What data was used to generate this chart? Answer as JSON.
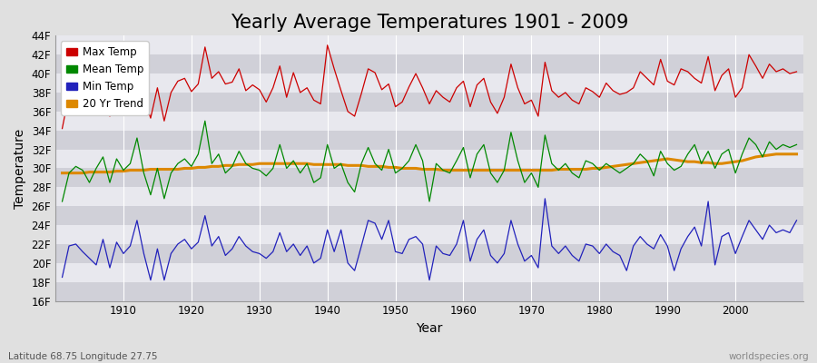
{
  "title": "Yearly Average Temperatures 1901 - 2009",
  "xlabel": "Year",
  "ylabel": "Temperature",
  "subtitle_left": "Latitude 68.75 Longitude 27.75",
  "subtitle_right": "worldspecies.org",
  "year_start": 1901,
  "year_end": 2009,
  "ylim": [
    16,
    44
  ],
  "yticks": [
    16,
    18,
    20,
    22,
    24,
    26,
    28,
    30,
    32,
    34,
    36,
    38,
    40,
    42,
    44
  ],
  "ytick_labels": [
    "16F",
    "18F",
    "20F",
    "22F",
    "24F",
    "26F",
    "28F",
    "30F",
    "32F",
    "34F",
    "36F",
    "38F",
    "40F",
    "42F",
    "44F"
  ],
  "xticks": [
    1910,
    1920,
    1930,
    1940,
    1950,
    1960,
    1970,
    1980,
    1990,
    2000
  ],
  "legend_entries": [
    "Max Temp",
    "Mean Temp",
    "Min Temp",
    "20 Yr Trend"
  ],
  "line_colors": [
    "#cc0000",
    "#008800",
    "#2222bb",
    "#dd8800"
  ],
  "bg_color": "#e0e0e0",
  "plot_bg_color": "#e8e8ee",
  "alt_band_color": "#d0d0d8",
  "grid_color": "#ffffff",
  "title_fontsize": 15,
  "axis_label_fontsize": 10,
  "tick_fontsize": 8.5,
  "legend_fontsize": 8.5,
  "max_temps": [
    34.2,
    37.8,
    38.4,
    37.2,
    36.5,
    38.9,
    38.2,
    35.5,
    38.1,
    36.8,
    38.3,
    41.2,
    37.6,
    35.3,
    38.5,
    35.0,
    38.0,
    39.2,
    39.5,
    38.1,
    38.9,
    42.8,
    39.5,
    40.2,
    38.9,
    39.1,
    40.5,
    38.2,
    38.8,
    38.3,
    37.0,
    38.5,
    40.8,
    37.5,
    40.1,
    38.0,
    38.5,
    37.2,
    36.8,
    43.0,
    40.5,
    38.2,
    36.0,
    35.5,
    37.9,
    40.5,
    40.1,
    38.3,
    38.9,
    36.5,
    37.0,
    38.6,
    40.0,
    38.5,
    36.8,
    38.2,
    37.5,
    37.0,
    38.5,
    39.2,
    36.5,
    38.8,
    39.5,
    37.0,
    35.8,
    37.5,
    41.0,
    38.5,
    36.8,
    37.2,
    35.5,
    41.2,
    38.2,
    37.5,
    38.0,
    37.2,
    36.8,
    38.5,
    38.1,
    37.5,
    39.0,
    38.2,
    37.8,
    38.0,
    38.5,
    40.2,
    39.5,
    38.8,
    41.5,
    39.2,
    38.8,
    40.5,
    40.2,
    39.5,
    39.0,
    41.8,
    38.2,
    39.8,
    40.5,
    37.5,
    38.5,
    42.0,
    40.8,
    39.5,
    41.0,
    40.2,
    40.5,
    40.0,
    40.2
  ],
  "mean_temps": [
    26.5,
    29.5,
    30.2,
    29.8,
    28.5,
    30.0,
    31.2,
    28.5,
    31.0,
    29.8,
    30.5,
    33.2,
    29.5,
    27.2,
    30.0,
    26.8,
    29.5,
    30.5,
    31.0,
    30.2,
    31.5,
    35.0,
    30.5,
    31.5,
    29.5,
    30.2,
    31.8,
    30.5,
    30.0,
    29.8,
    29.2,
    30.0,
    32.5,
    30.0,
    30.8,
    29.5,
    30.5,
    28.5,
    29.0,
    32.5,
    30.0,
    30.5,
    28.5,
    27.5,
    30.5,
    32.2,
    30.5,
    29.8,
    32.0,
    29.5,
    30.0,
    30.8,
    32.5,
    30.8,
    26.5,
    30.5,
    29.8,
    29.5,
    30.8,
    32.2,
    29.0,
    31.5,
    32.5,
    29.5,
    28.5,
    29.8,
    33.8,
    30.8,
    28.5,
    29.5,
    28.0,
    33.5,
    30.5,
    29.8,
    30.5,
    29.5,
    29.0,
    30.8,
    30.5,
    29.8,
    30.5,
    30.0,
    29.5,
    30.0,
    30.5,
    31.5,
    30.8,
    29.2,
    31.8,
    30.5,
    29.8,
    30.2,
    31.5,
    32.5,
    30.5,
    31.8,
    30.0,
    31.5,
    32.0,
    29.5,
    31.5,
    33.2,
    32.5,
    31.2,
    32.8,
    32.0,
    32.5,
    32.2,
    32.5
  ],
  "min_temps": [
    18.5,
    21.8,
    22.0,
    21.2,
    20.5,
    19.8,
    22.5,
    19.5,
    22.2,
    21.0,
    21.8,
    24.5,
    21.0,
    18.2,
    21.5,
    18.2,
    21.0,
    22.0,
    22.5,
    21.5,
    22.2,
    25.0,
    21.8,
    22.8,
    20.8,
    21.5,
    22.8,
    21.8,
    21.2,
    21.0,
    20.5,
    21.2,
    23.2,
    21.2,
    22.0,
    20.8,
    21.8,
    20.0,
    20.5,
    23.5,
    21.2,
    23.5,
    20.0,
    19.2,
    21.8,
    24.5,
    24.2,
    22.5,
    24.5,
    21.2,
    21.0,
    22.5,
    22.8,
    22.0,
    18.2,
    21.8,
    21.0,
    20.8,
    22.0,
    24.5,
    20.2,
    22.5,
    23.5,
    20.8,
    20.0,
    21.0,
    24.5,
    22.0,
    20.2,
    20.8,
    19.5,
    26.8,
    21.8,
    21.0,
    21.8,
    20.8,
    20.2,
    22.0,
    21.8,
    21.0,
    22.0,
    21.2,
    20.8,
    19.2,
    21.8,
    22.8,
    22.0,
    21.5,
    23.0,
    21.8,
    19.2,
    21.5,
    22.8,
    23.8,
    21.8,
    26.5,
    19.8,
    22.8,
    23.2,
    21.0,
    22.8,
    24.5,
    23.5,
    22.5,
    24.0,
    23.2,
    23.5,
    23.2,
    24.5
  ],
  "trend_temps": [
    29.5,
    29.5,
    29.5,
    29.5,
    29.6,
    29.6,
    29.6,
    29.6,
    29.7,
    29.7,
    29.8,
    29.8,
    29.8,
    29.9,
    29.9,
    29.9,
    29.9,
    29.9,
    30.0,
    30.0,
    30.1,
    30.1,
    30.2,
    30.2,
    30.3,
    30.3,
    30.4,
    30.4,
    30.4,
    30.5,
    30.5,
    30.5,
    30.5,
    30.5,
    30.5,
    30.5,
    30.5,
    30.4,
    30.4,
    30.4,
    30.4,
    30.4,
    30.3,
    30.3,
    30.3,
    30.2,
    30.2,
    30.2,
    30.1,
    30.1,
    30.0,
    30.0,
    30.0,
    29.9,
    29.9,
    29.9,
    29.8,
    29.8,
    29.8,
    29.8,
    29.8,
    29.8,
    29.8,
    29.8,
    29.8,
    29.8,
    29.8,
    29.8,
    29.8,
    29.8,
    29.8,
    29.8,
    29.8,
    29.9,
    29.9,
    29.9,
    29.9,
    29.9,
    30.0,
    30.0,
    30.1,
    30.2,
    30.3,
    30.4,
    30.5,
    30.6,
    30.7,
    30.8,
    30.9,
    31.0,
    30.9,
    30.8,
    30.7,
    30.7,
    30.6,
    30.6,
    30.5,
    30.5,
    30.6,
    30.7,
    30.8,
    31.0,
    31.2,
    31.3,
    31.4,
    31.5,
    31.5,
    31.5,
    31.5
  ]
}
